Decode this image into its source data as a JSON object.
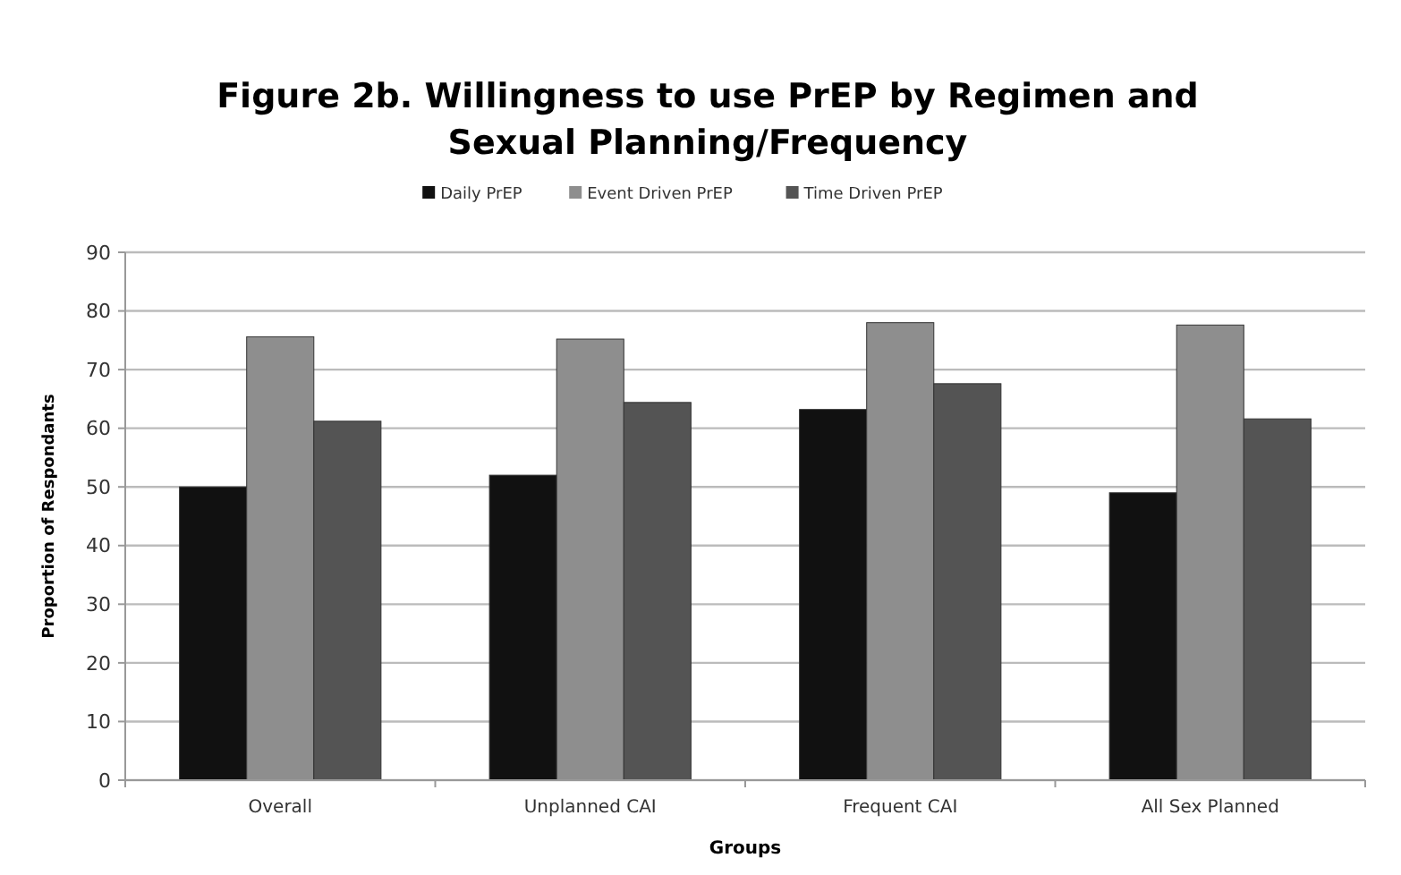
{
  "chart_data": {
    "type": "bar",
    "title": "Figure 2b.  Willingness to use PrEP by Regimen and\nSexual Planning/Frequency",
    "xlabel": "Groups",
    "ylabel": "Proportion of Respondants",
    "categories": [
      "Overall",
      "Unplanned CAI",
      "Frequent CAI",
      "All Sex Planned"
    ],
    "series": [
      {
        "name": "Daily PrEP",
        "color": "#111111",
        "values": [
          50,
          52,
          63.2,
          49
        ]
      },
      {
        "name": "Event Driven PrEP",
        "color": "#8e8e8e",
        "values": [
          75.6,
          75.2,
          78,
          77.6
        ]
      },
      {
        "name": "Time Driven PrEP",
        "color": "#545454",
        "values": [
          61.2,
          64.4,
          67.6,
          61.6
        ]
      }
    ],
    "ylim": [
      0,
      90
    ],
    "yticks": [
      0,
      10,
      20,
      30,
      40,
      50,
      60,
      70,
      80,
      90
    ],
    "grid": "y",
    "legend": "top"
  }
}
